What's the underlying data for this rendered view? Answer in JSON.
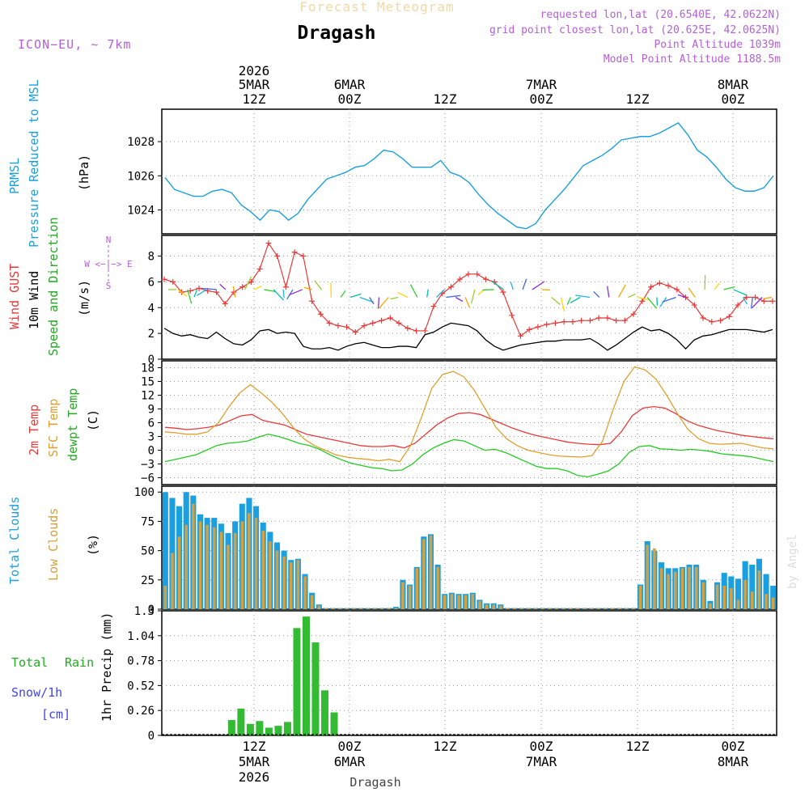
{
  "header": {
    "title_top": "Forecast Meteogram",
    "station": "Dragash",
    "model": "ICON−EU, ~ 7km",
    "requested": "requested lon,lat (20.6540E, 42.0622N)",
    "grid_point": "grid point closest lon,lat (20.625E, 42.0625N)",
    "point_alt": "Point Altitude 1039m",
    "model_alt": "Model Point Altitude 1188.5m"
  },
  "time_axis": {
    "top_year": "2026",
    "top_labels": [
      {
        "day": "5MAR",
        "hour": "12Z"
      },
      {
        "day": "6MAR",
        "hour": "00Z"
      },
      {
        "day": "",
        "hour": "12Z"
      },
      {
        "day": "7MAR",
        "hour": "00Z"
      },
      {
        "day": "",
        "hour": "12Z"
      },
      {
        "day": "8MAR",
        "hour": "00Z"
      }
    ],
    "bottom_labels": [
      {
        "hour": "12Z",
        "day": "5MAR",
        "year": "2026"
      },
      {
        "hour": "00Z",
        "day": "6MAR",
        "year": ""
      },
      {
        "hour": "12Z",
        "day": "",
        "year": ""
      },
      {
        "hour": "00Z",
        "day": "7MAR",
        "year": ""
      },
      {
        "hour": "12Z",
        "day": "",
        "year": ""
      },
      {
        "hour": "00Z",
        "day": "8MAR",
        "year": ""
      }
    ],
    "bottom_station": "Dragash"
  },
  "panels": {
    "pressure": {
      "label_a": "PRMSL",
      "label_b": "Pressure Reduced to MSL",
      "unit": "(hPa)"
    },
    "wind": {
      "label_a": "Wind GUST",
      "label_b": "10m Wind",
      "label_c": "Speed and Direction",
      "unit": "(m/s)",
      "compass_ns": "N",
      "compass_s": "S",
      "compass_we": "W <−|−> E"
    },
    "temp": {
      "label_a": "2m Temp",
      "label_b": "SFC Temp",
      "label_c": "dewpt Temp",
      "unit": "(C)"
    },
    "clouds": {
      "label_a": "Total Clouds",
      "label_b": "Low Clouds",
      "unit": "(%)"
    },
    "precip": {
      "label_a": "Total",
      "label_b": "Rain",
      "label_c": "Snow/1h",
      "label_d": "[cm]",
      "unit": "1hr Precip (mm)"
    }
  },
  "watermark": "by Angel",
  "colors": {
    "pressure": "#1a9fe0",
    "gust": "#e83a3a",
    "wind": "#000000",
    "sfc": "#e0a030",
    "temp": "#e83a3a",
    "dew": "#22cc22",
    "total_cloud": "#1a9fe0",
    "low_cloud": "#d4a040",
    "rain": "#33bb33",
    "label_purple": "#b65ed8",
    "snow": "#4444ee"
  },
  "chart_data": [
    {
      "type": "line",
      "title": "PRMSL Pressure Reduced to MSL",
      "ylabel": "hPa",
      "ylim": [
        1022.6,
        1029.9
      ],
      "yticks": [
        1024,
        1026,
        1028
      ],
      "x_hours_from_start": "0..64 hourly, start 2026-03-05 03Z",
      "series": [
        {
          "name": "PRMSL",
          "values": [
            1025.9,
            1025.2,
            1025.0,
            1024.8,
            1024.8,
            1025.1,
            1025.2,
            1025.0,
            1024.3,
            1023.9,
            1023.4,
            1024.0,
            1023.9,
            1023.4,
            1023.8,
            1024.6,
            1025.2,
            1025.8,
            1026.0,
            1026.2,
            1026.5,
            1026.6,
            1027.0,
            1027.5,
            1027.4,
            1027.0,
            1026.5,
            1026.5,
            1026.5,
            1026.9,
            1026.2,
            1026.0,
            1025.6,
            1024.9,
            1024.3,
            1023.8,
            1023.4,
            1023.0,
            1022.9,
            1023.2,
            1024.0,
            1024.6,
            1025.2,
            1025.9,
            1026.6,
            1026.9,
            1027.2,
            1027.6,
            1028.1,
            1028.2,
            1028.3,
            1028.3,
            1028.5,
            1028.8,
            1029.1,
            1028.4,
            1027.5,
            1027.1,
            1026.5,
            1025.8,
            1025.3,
            1025.1,
            1025.1,
            1025.3,
            1026.0
          ]
        }
      ]
    },
    {
      "type": "line",
      "title": "Wind GUST / 10m Wind Speed and Direction",
      "ylabel": "m/s",
      "ylim": [
        0,
        9.6
      ],
      "yticks": [
        0,
        2,
        4,
        6,
        8
      ],
      "series": [
        {
          "name": "Wind GUST",
          "values": [
            6.2,
            6.0,
            5.2,
            5.3,
            5.5,
            5.3,
            5.2,
            4.3,
            5.2,
            5.6,
            6.0,
            7.0,
            9.0,
            8.0,
            5.6,
            8.3,
            8.0,
            4.5,
            3.5,
            2.8,
            2.6,
            2.5,
            2.1,
            2.6,
            2.8,
            3.0,
            3.2,
            2.8,
            2.4,
            2.2,
            2.2,
            4.1,
            5.1,
            5.6,
            6.2,
            6.6,
            6.6,
            6.2,
            6.0,
            5.2,
            3.4,
            1.8,
            2.3,
            2.5,
            2.7,
            2.8,
            2.9,
            2.9,
            3.0,
            3.0,
            3.2,
            3.2,
            3.0,
            3.0,
            3.5,
            4.5,
            5.6,
            5.9,
            5.7,
            5.4,
            4.8,
            4.2,
            3.2,
            2.9,
            3.0,
            3.3,
            4.2,
            4.8,
            4.8,
            4.5,
            4.5
          ]
        },
        {
          "name": "10m Wind",
          "values": [
            2.4,
            2.0,
            1.8,
            1.9,
            1.7,
            1.6,
            2.1,
            1.6,
            1.2,
            1.1,
            1.5,
            2.2,
            2.3,
            2.0,
            2.1,
            2.0,
            1.0,
            0.8,
            0.8,
            0.9,
            0.7,
            1.0,
            1.2,
            1.3,
            1.1,
            0.9,
            0.9,
            1.0,
            1.0,
            0.9,
            1.9,
            2.1,
            2.5,
            2.8,
            2.7,
            2.6,
            2.2,
            1.5,
            1.0,
            0.7,
            0.9,
            1.1,
            1.2,
            1.3,
            1.4,
            1.4,
            1.5,
            1.5,
            1.5,
            1.6,
            1.2,
            0.7,
            1.1,
            1.6,
            2.1,
            2.5,
            2.2,
            2.3,
            2.0,
            1.5,
            0.8,
            1.5,
            1.8,
            1.9,
            2.1,
            2.3,
            2.3,
            2.3,
            2.2,
            2.1,
            2.3
          ]
        }
      ]
    },
    {
      "type": "line",
      "title": "2m Temp / SFC Temp / dewpt Temp",
      "ylabel": "C",
      "ylim": [
        -7.5,
        19.5
      ],
      "yticks": [
        -6,
        -3,
        0,
        3,
        6,
        9,
        12,
        15,
        18
      ],
      "series": [
        {
          "name": "2m Temp",
          "values": [
            5.0,
            4.8,
            4.5,
            4.7,
            5.0,
            5.5,
            6.5,
            7.5,
            7.8,
            6.5,
            6.0,
            5.5,
            4.5,
            3.5,
            3.0,
            2.5,
            2.0,
            1.5,
            1.0,
            0.8,
            0.8,
            1.0,
            0.5,
            1.5,
            3.5,
            5.5,
            7.0,
            8.0,
            8.2,
            7.8,
            6.8,
            5.8,
            4.8,
            4.0,
            3.3,
            2.8,
            2.3,
            1.8,
            1.5,
            1.3,
            1.2,
            1.5,
            4.0,
            7.5,
            9.2,
            9.5,
            9.2,
            8.0,
            6.5,
            5.5,
            4.8,
            4.2,
            3.8,
            3.3,
            3.0,
            2.7,
            2.5
          ]
        },
        {
          "name": "SFC Temp",
          "values": [
            4.0,
            3.8,
            3.5,
            3.5,
            4.0,
            6.0,
            9.5,
            12.5,
            14.3,
            12.5,
            10.5,
            8.0,
            5.0,
            2.5,
            1.0,
            0.0,
            -1.0,
            -1.5,
            -1.8,
            -2.0,
            -2.3,
            -2.0,
            -2.5,
            1.0,
            7.0,
            13.5,
            16.5,
            17.2,
            16.0,
            13.0,
            9.0,
            5.0,
            2.5,
            1.0,
            0.0,
            -0.5,
            -1.0,
            -1.3,
            -1.4,
            -1.5,
            -1.2,
            2.0,
            9.0,
            15.0,
            18.2,
            17.5,
            15.5,
            12.0,
            8.0,
            4.5,
            2.5,
            1.5,
            1.3,
            1.4,
            1.5,
            1.0,
            0.5,
            0.3
          ]
        },
        {
          "name": "dewpt Temp",
          "values": [
            -2.5,
            -2.0,
            -1.5,
            -1.0,
            0.0,
            1.0,
            1.5,
            1.7,
            2.0,
            2.8,
            3.5,
            3.0,
            2.3,
            1.5,
            1.0,
            0.2,
            -1.0,
            -2.0,
            -2.8,
            -3.3,
            -3.8,
            -4.0,
            -4.5,
            -4.3,
            -3.0,
            -1.0,
            0.5,
            1.5,
            2.3,
            2.0,
            1.0,
            0.0,
            0.2,
            -0.5,
            -1.5,
            -2.5,
            -3.5,
            -4.0,
            -4.0,
            -4.5,
            -5.5,
            -5.8,
            -5.2,
            -4.5,
            -3.0,
            -0.5,
            0.8,
            1.0,
            0.3,
            0.2,
            0.0,
            0.2,
            0.0,
            -0.3,
            -0.8,
            -1.0,
            -1.2,
            -1.5,
            -2.0,
            -2.5
          ]
        }
      ]
    },
    {
      "type": "bar",
      "title": "Total Clouds / Low Clouds",
      "ylabel": "%",
      "ylim": [
        0,
        105
      ],
      "yticks": [
        0,
        25,
        50,
        75,
        100
      ],
      "series": [
        {
          "name": "Total Clouds",
          "values": [
            100,
            95,
            88,
            100,
            97,
            81,
            78,
            78,
            73,
            65,
            75,
            90,
            95,
            88,
            74,
            66,
            57,
            50,
            42,
            43,
            30,
            14,
            4,
            1,
            1,
            1,
            1,
            1,
            1,
            1,
            1,
            1,
            1,
            2,
            25,
            21,
            36,
            62,
            64,
            38,
            13,
            14,
            13,
            13,
            14,
            8,
            5,
            5,
            4,
            1,
            1,
            1,
            1,
            1,
            1,
            1,
            1,
            1,
            1,
            1,
            1,
            1,
            1,
            1,
            1,
            1,
            1,
            1,
            21,
            58,
            50,
            40,
            35,
            35,
            36,
            38,
            38,
            25,
            7,
            23,
            31,
            28,
            26,
            41,
            38,
            43,
            30,
            20
          ]
        },
        {
          "name": "Low Clouds",
          "values": [
            20,
            48,
            62,
            72,
            90,
            75,
            72,
            70,
            66,
            55,
            65,
            75,
            82,
            78,
            67,
            58,
            50,
            45,
            40,
            42,
            28,
            12,
            3,
            1,
            1,
            1,
            1,
            1,
            1,
            1,
            1,
            1,
            1,
            1,
            23,
            20,
            35,
            60,
            63,
            36,
            12,
            13,
            12,
            12,
            13,
            7,
            4,
            4,
            3,
            1,
            1,
            1,
            1,
            1,
            1,
            1,
            1,
            1,
            1,
            1,
            1,
            1,
            1,
            1,
            1,
            1,
            1,
            1,
            20,
            55,
            52,
            35,
            30,
            32,
            35,
            36,
            36,
            23,
            5,
            21,
            20,
            18,
            8,
            25,
            15,
            33,
            13,
            10
          ]
        }
      ]
    },
    {
      "type": "bar",
      "title": "1hr Precip (mm)",
      "ylabel": "1hr Precip (mm)",
      "ylim": [
        0,
        1.3
      ],
      "yticks": [
        0,
        0.26,
        0.52,
        0.78,
        1.04,
        1.3
      ],
      "series": [
        {
          "name": "Total Rain",
          "values": [
            0,
            0,
            0,
            0,
            0,
            0,
            0,
            0.16,
            0.28,
            0.12,
            0.15,
            0.08,
            0.1,
            0.14,
            1.12,
            1.24,
            0.97,
            0.47,
            0.24,
            0,
            0,
            0,
            0,
            0,
            0,
            0,
            0,
            0,
            0,
            0,
            0,
            0,
            0,
            0,
            0,
            0,
            0,
            0,
            0,
            0,
            0,
            0,
            0,
            0,
            0,
            0,
            0,
            0,
            0,
            0,
            0,
            0,
            0,
            0,
            0,
            0,
            0,
            0,
            0,
            0,
            0,
            0,
            0,
            0,
            0,
            0
          ]
        }
      ]
    }
  ]
}
